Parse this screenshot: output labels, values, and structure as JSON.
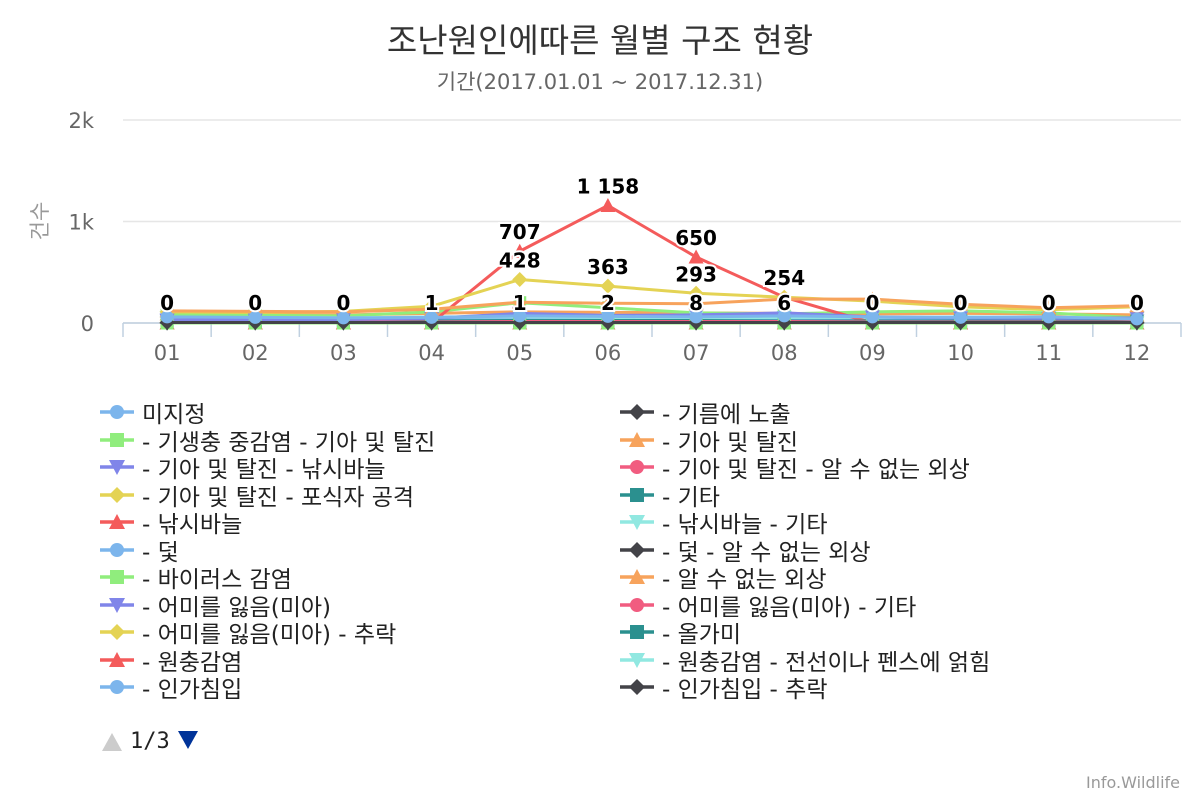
{
  "chart_data": {
    "type": "line",
    "title": "조난원인에따른 월별 구조 현황",
    "subtitle": "기간(2017.01.01 ~ 2017.12.31)",
    "ylabel": "건수",
    "ylim": [
      0,
      2000
    ],
    "yticks": [
      "0",
      "1k",
      "2k"
    ],
    "categories": [
      "01",
      "02",
      "03",
      "04",
      "05",
      "06",
      "07",
      "08",
      "09",
      "10",
      "11",
      "12"
    ],
    "grid": true,
    "legend_position": "bottom",
    "series": [
      {
        "name": "미지정",
        "color": "#7cb5ec",
        "marker": "circle",
        "values": [
          60,
          55,
          50,
          55,
          70,
          65,
          60,
          70,
          60,
          55,
          60,
          40
        ]
      },
      {
        "name": "- 기름에 노출",
        "color": "#434348",
        "marker": "diamond",
        "values": [
          5,
          5,
          5,
          5,
          5,
          5,
          5,
          5,
          5,
          5,
          5,
          5
        ]
      },
      {
        "name": "- 기생충 중감염 - 기아 및 탈진",
        "color": "#90ed7d",
        "marker": "square",
        "values": [
          0,
          0,
          0,
          0,
          0,
          0,
          0,
          0,
          0,
          0,
          0,
          0
        ]
      },
      {
        "name": "- 기아 및 탈진",
        "color": "#f7a35c",
        "marker": "triangle",
        "values": [
          120,
          115,
          110,
          135,
          205,
          195,
          190,
          235,
          235,
          185,
          150,
          170
        ]
      },
      {
        "name": "- 기아 및 탈진 - 낚시바늘",
        "color": "#8085e9",
        "marker": "triangle-down",
        "values": [
          30,
          30,
          35,
          45,
          95,
          75,
          80,
          100,
          60,
          50,
          45,
          50
        ]
      },
      {
        "name": "- 기아 및 탈진 - 알 수 없는 외상",
        "color": "#f15c80",
        "marker": "circle",
        "values": [
          10,
          10,
          10,
          10,
          15,
          15,
          15,
          15,
          10,
          10,
          10,
          10
        ]
      },
      {
        "name": "- 기아 및 탈진 - 포식자 공격",
        "color": "#e4d354",
        "marker": "diamond",
        "values": [
          110,
          105,
          115,
          165,
          428,
          363,
          293,
          254,
          215,
          160,
          130,
          160
        ]
      },
      {
        "name": "- 기타",
        "color": "#2b908f",
        "marker": "square",
        "values": [
          20,
          20,
          20,
          20,
          25,
          25,
          25,
          20,
          20,
          20,
          20,
          20
        ]
      },
      {
        "name": "- 낚시바늘",
        "color": "#f45b5b",
        "marker": "triangle",
        "values": [
          0,
          0,
          0,
          1,
          707,
          1158,
          650,
          254,
          0,
          0,
          0,
          0
        ]
      },
      {
        "name": "- 낚시바늘 - 기타",
        "color": "#91e8e1",
        "marker": "triangle-down",
        "values": [
          50,
          55,
          50,
          60,
          60,
          55,
          50,
          55,
          55,
          60,
          55,
          45
        ]
      },
      {
        "name": "- 덫",
        "color": "#7cb5ec",
        "marker": "circle",
        "values": [
          40,
          40,
          40,
          40,
          40,
          40,
          40,
          40,
          40,
          40,
          40,
          40
        ]
      },
      {
        "name": "- 덫 - 알 수 없는 외상",
        "color": "#434348",
        "marker": "diamond",
        "values": [
          0,
          0,
          0,
          0,
          0,
          0,
          0,
          0,
          0,
          0,
          0,
          0
        ]
      },
      {
        "name": "- 바이러스 감염",
        "color": "#90ed7d",
        "marker": "square",
        "values": [
          80,
          75,
          70,
          110,
          200,
          150,
          100,
          90,
          110,
          120,
          100,
          50
        ]
      },
      {
        "name": "- 알 수 없는 외상",
        "color": "#f7a35c",
        "marker": "triangle",
        "values": [
          90,
          85,
          80,
          95,
          110,
          105,
          100,
          95,
          90,
          95,
          90,
          80
        ]
      },
      {
        "name": "- 어미를 잃음(미아)",
        "color": "#8085e9",
        "marker": "triangle-down",
        "values": [
          20,
          20,
          20,
          20,
          30,
          30,
          30,
          30,
          20,
          20,
          20,
          20
        ]
      },
      {
        "name": "- 어미를 잃음(미아) - 기타",
        "color": "#f15c80",
        "marker": "circle",
        "values": [
          0,
          0,
          0,
          0,
          0,
          0,
          0,
          0,
          0,
          0,
          0,
          0
        ]
      },
      {
        "name": "- 어미를 잃음(미아) - 추락",
        "color": "#e4d354",
        "marker": "diamond",
        "values": [
          5,
          5,
          5,
          5,
          5,
          5,
          5,
          5,
          5,
          5,
          5,
          5
        ]
      },
      {
        "name": "- 올가미",
        "color": "#2b908f",
        "marker": "square",
        "values": [
          15,
          15,
          15,
          15,
          15,
          15,
          15,
          15,
          15,
          15,
          15,
          15
        ]
      },
      {
        "name": "- 원충감염",
        "color": "#f45b5b",
        "marker": "triangle",
        "values": [
          0,
          0,
          0,
          0,
          0,
          0,
          0,
          0,
          0,
          0,
          0,
          0
        ]
      },
      {
        "name": "- 원충감염 - 전선이나 펜스에 얽힘",
        "color": "#91e8e1",
        "marker": "triangle-down",
        "values": [
          0,
          0,
          0,
          0,
          0,
          0,
          0,
          0,
          0,
          0,
          0,
          0
        ]
      },
      {
        "name": "- 인가침입",
        "color": "#7cb5ec",
        "marker": "circle",
        "values": [
          10,
          10,
          10,
          10,
          10,
          10,
          10,
          10,
          10,
          10,
          10,
          10
        ]
      },
      {
        "name": "- 인가침입 - 추락",
        "color": "#434348",
        "marker": "diamond",
        "values": [
          0,
          0,
          0,
          0,
          0,
          0,
          0,
          0,
          0,
          0,
          0,
          0
        ]
      }
    ],
    "data_labels": [
      {
        "category": "01",
        "value": 0,
        "text": "0"
      },
      {
        "category": "02",
        "value": 0,
        "text": "0"
      },
      {
        "category": "03",
        "value": 0,
        "text": "0"
      },
      {
        "category": "04",
        "value": 1,
        "text": "1"
      },
      {
        "category": "05",
        "value": 707,
        "text": "707"
      },
      {
        "category": "05",
        "value": 428,
        "text": "428"
      },
      {
        "category": "05",
        "value": 1,
        "text": "1"
      },
      {
        "category": "06",
        "value": 1158,
        "text": "1 158"
      },
      {
        "category": "06",
        "value": 363,
        "text": "363"
      },
      {
        "category": "06",
        "value": 2,
        "text": "2"
      },
      {
        "category": "07",
        "value": 650,
        "text": "650"
      },
      {
        "category": "07",
        "value": 293,
        "text": "293"
      },
      {
        "category": "07",
        "value": 8,
        "text": "8"
      },
      {
        "category": "08",
        "value": 254,
        "text": "254"
      },
      {
        "category": "08",
        "value": 6,
        "text": "6"
      },
      {
        "category": "09",
        "value": 0,
        "text": "0"
      },
      {
        "category": "10",
        "value": 0,
        "text": "0"
      },
      {
        "category": "11",
        "value": 0,
        "text": "0"
      },
      {
        "category": "12",
        "value": 0,
        "text": "0"
      }
    ]
  },
  "legend": {
    "pager_text": "1/3"
  },
  "credits": "Info.Wildlife"
}
